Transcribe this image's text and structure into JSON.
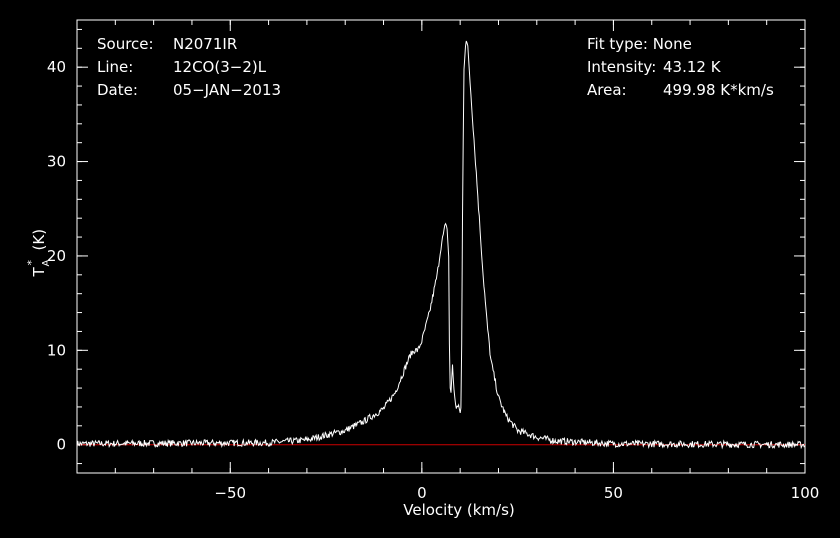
{
  "chart_data": {
    "type": "line",
    "xlabel": "Velocity (km/s)",
    "ylabel_main": "T",
    "ylabel_sub": "A",
    "ylabel_sup": "*",
    "ylabel_unit": "(K)",
    "xlim": [
      -90,
      100
    ],
    "ylim": [
      -3,
      45
    ],
    "x_ticks": [
      -50,
      0,
      50,
      100
    ],
    "x_tick_labels": [
      "−50",
      "0",
      "50",
      "100"
    ],
    "y_ticks": [
      0,
      10,
      20,
      30,
      40
    ],
    "y_tick_labels": [
      "0",
      "10",
      "20",
      "30",
      "40"
    ],
    "x_minor_step": 10,
    "y_minor_step": 2,
    "grid": false,
    "background": "#000000",
    "line_color": "#ffffff",
    "baseline": {
      "y": 0,
      "color": "#cc0000"
    },
    "series": [
      {
        "x": [
          -90,
          -40,
          -30,
          -25,
          -20,
          -15,
          -10,
          -7,
          -5,
          -3,
          -2,
          -1,
          0,
          2,
          4,
          5,
          6,
          6.5,
          7,
          7.3,
          7.6,
          8,
          8.5,
          9,
          9.5,
          10,
          10.3,
          10.6,
          11,
          11.5,
          12,
          13,
          14,
          15,
          16,
          17,
          18,
          20,
          22,
          25,
          30,
          35,
          40,
          50,
          100
        ],
        "y": [
          0.1,
          0.2,
          0.5,
          1.0,
          1.5,
          2.5,
          3.8,
          5.5,
          7.5,
          9.5,
          10.0,
          10.0,
          11.0,
          14.0,
          18.0,
          21.0,
          23.0,
          23.5,
          20.0,
          6.0,
          5.5,
          8.5,
          5.0,
          4.0,
          4.0,
          3.5,
          4.0,
          24.0,
          40.0,
          43.12,
          42.0,
          36.0,
          30.0,
          24.0,
          18.0,
          13.0,
          9.0,
          5.0,
          3.0,
          1.5,
          0.8,
          0.4,
          0.3,
          0.1,
          0.0
        ]
      }
    ]
  },
  "info": {
    "source_label": "Source:",
    "source_value": "N2071IR",
    "line_label": "Line:",
    "line_value": "12CO(3−2)L",
    "date_label": "Date:",
    "date_value": "05−JAN−2013",
    "fit_label": "Fit type:",
    "fit_value": "None",
    "intensity_label": "Intensity:",
    "intensity_value": "43.12 K",
    "area_label": "Area:",
    "area_value": "499.98 K*km/s"
  }
}
